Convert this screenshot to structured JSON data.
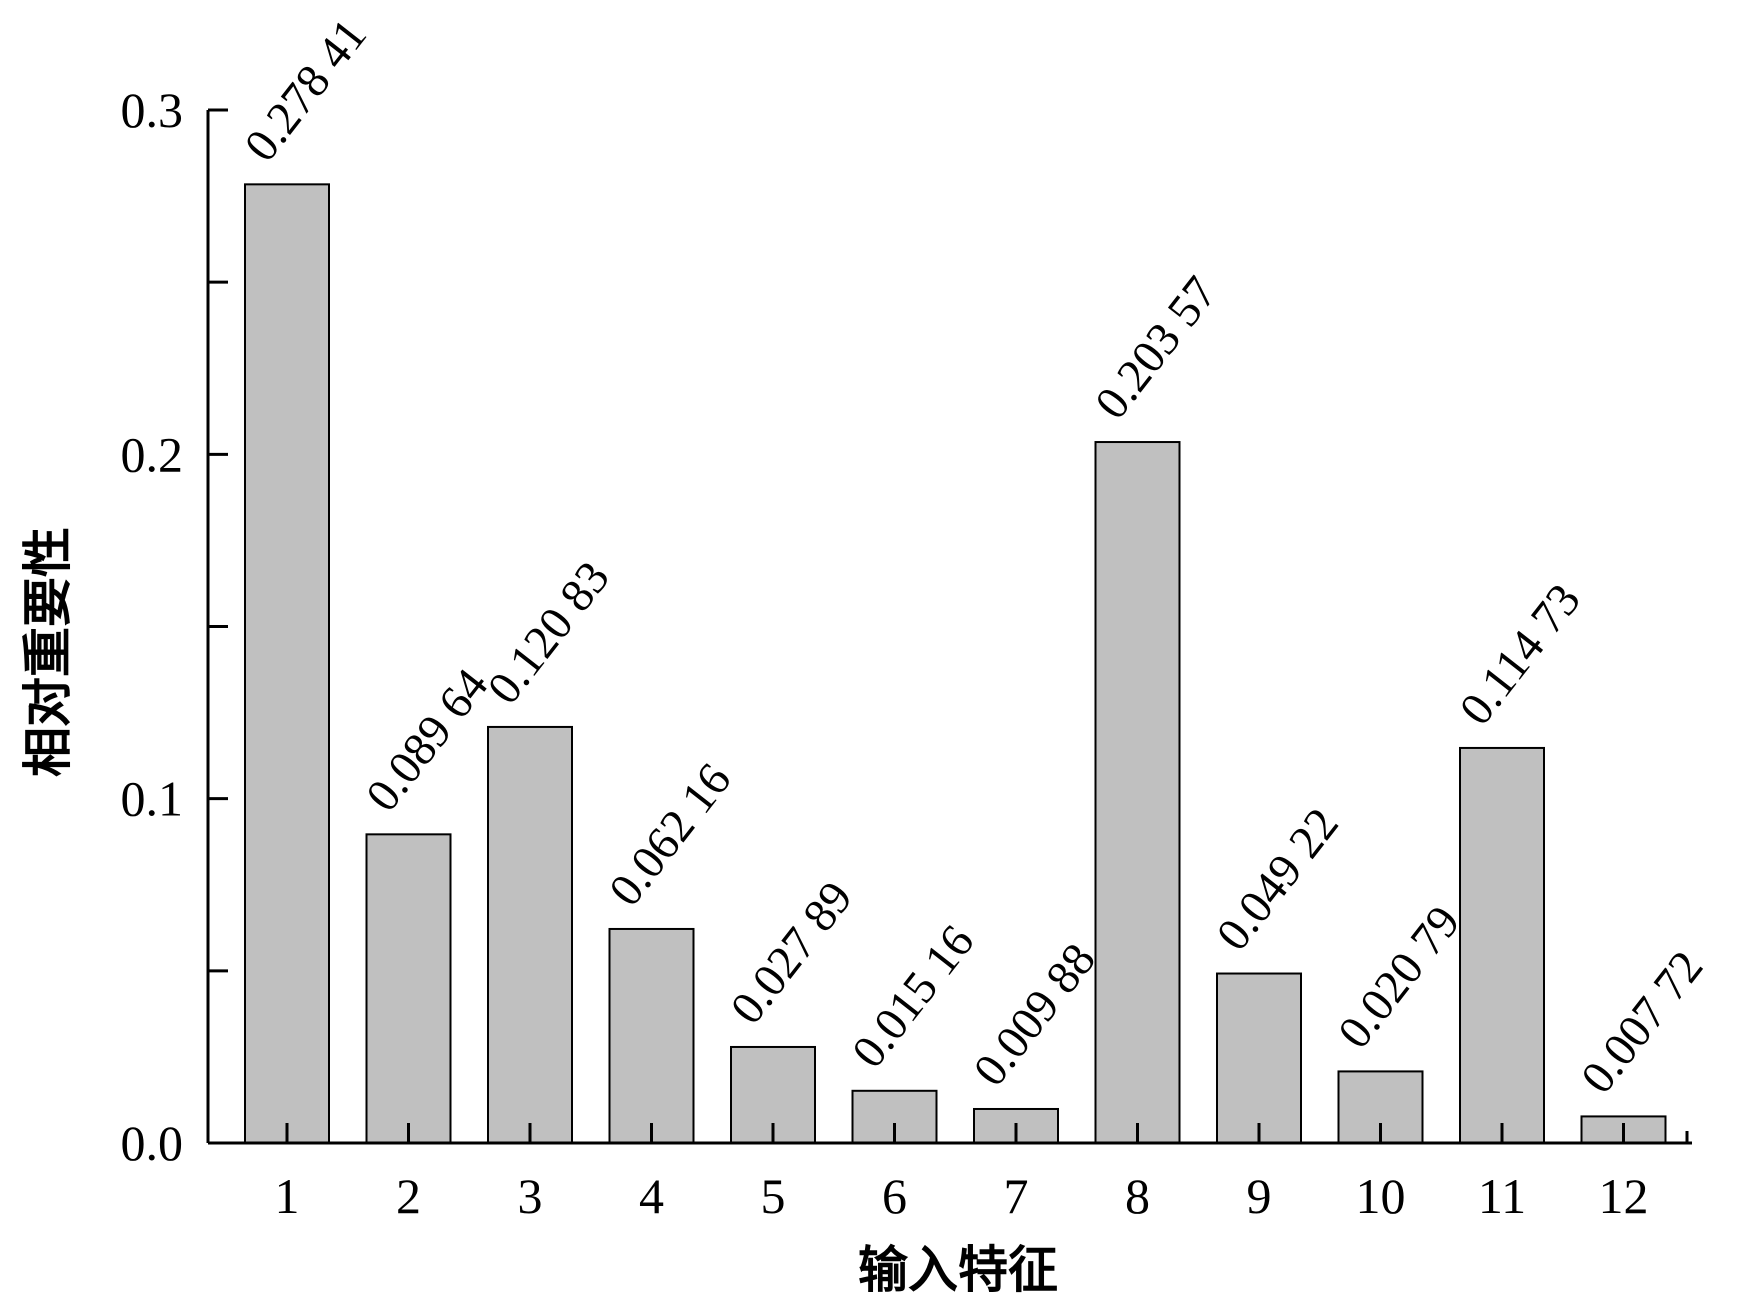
{
  "chart_data": {
    "type": "bar",
    "xlabel": "输入特征",
    "ylabel": "相对重要性",
    "ylim": [
      0,
      0.3
    ],
    "yticks": [
      0,
      0.1,
      0.2,
      0.3
    ],
    "ytick_labels": [
      "0.0",
      "0.1",
      "0.2",
      "0.3"
    ],
    "categories": [
      "1",
      "2",
      "3",
      "4",
      "5",
      "6",
      "7",
      "8",
      "9",
      "10",
      "11",
      "12"
    ],
    "values": [
      0.27841,
      0.08964,
      0.12083,
      0.06216,
      0.02789,
      0.01516,
      0.00988,
      0.20357,
      0.04922,
      0.02079,
      0.11473,
      0.00772
    ],
    "value_labels": [
      "0.278 41",
      "0.089 64",
      "0.120 83",
      "0.062 16",
      "0.027 89",
      "0.015 16",
      "0.009 88",
      "0.203 57",
      "0.049 22",
      "0.020 79",
      "0.114 73",
      "0.007 72"
    ],
    "bar_color": "#c0c0c0",
    "grid": false,
    "legend": "none"
  }
}
